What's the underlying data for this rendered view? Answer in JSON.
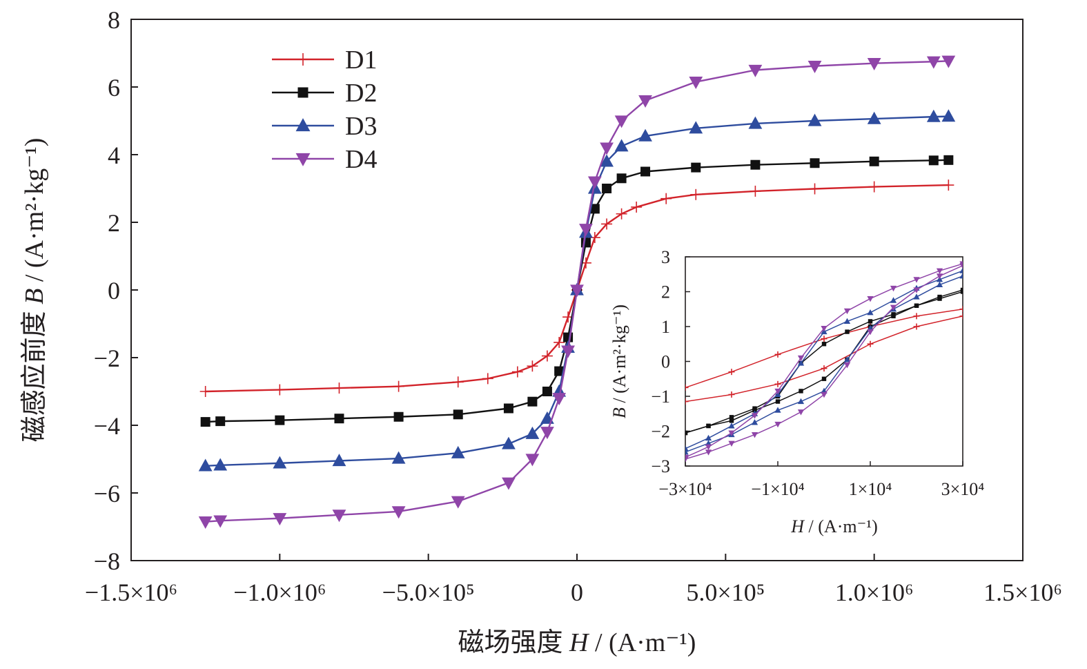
{
  "colors": {
    "D1": "#d2232a",
    "D2": "#111111",
    "D3": "#2e4c9e",
    "D4": "#8f45a8",
    "axis": "#231f20"
  },
  "chart_data": [
    {
      "type": "line",
      "role": "main",
      "xlabel_prefix": "磁场强度",
      "xlabel_var": "H",
      "xlabel_unit": "/ (A·m⁻¹)",
      "ylabel_prefix": "磁感应前度",
      "ylabel_var": "B",
      "ylabel_unit": "/ (A·m²·kg⁻¹)",
      "xlim": [
        -1500000,
        1500000
      ],
      "ylim": [
        -8,
        8
      ],
      "x_ticks": [
        -1500000,
        -1000000,
        -500000,
        0,
        500000,
        1000000,
        1500000
      ],
      "x_tick_labels": [
        "−1.5×10⁶",
        "−1.0×10⁶",
        "−5.0×10⁵",
        "0",
        "5.0×10⁵",
        "1.0×10⁶",
        "1.5×10⁶"
      ],
      "y_ticks": [
        -8,
        -6,
        -4,
        -2,
        0,
        2,
        4,
        6,
        8
      ],
      "y_tick_labels": [
        "−8",
        "−6",
        "−4",
        "−2",
        "0",
        "2",
        "4",
        "6",
        "8"
      ],
      "legend_position": "top-left",
      "series": [
        {
          "name": "D1",
          "marker": "plus",
          "x": [
            -1250000,
            -1000000,
            -800000,
            -600000,
            -400000,
            -300000,
            -200000,
            -150000,
            -100000,
            -60000,
            -30000,
            0,
            30000,
            60000,
            100000,
            150000,
            200000,
            300000,
            400000,
            600000,
            800000,
            1000000,
            1250000
          ],
          "y": [
            -3.0,
            -2.95,
            -2.9,
            -2.85,
            -2.72,
            -2.62,
            -2.42,
            -2.25,
            -1.95,
            -1.55,
            -0.8,
            0.0,
            0.8,
            1.55,
            1.95,
            2.25,
            2.45,
            2.7,
            2.82,
            2.92,
            2.99,
            3.05,
            3.1
          ]
        },
        {
          "name": "D2",
          "marker": "square",
          "x": [
            -1250000,
            -1200000,
            -1000000,
            -800000,
            -600000,
            -400000,
            -230000,
            -150000,
            -100000,
            -60000,
            -30000,
            0,
            30000,
            60000,
            100000,
            150000,
            230000,
            400000,
            600000,
            800000,
            1000000,
            1200000,
            1250000
          ],
          "y": [
            -3.9,
            -3.88,
            -3.85,
            -3.8,
            -3.75,
            -3.68,
            -3.5,
            -3.3,
            -3.0,
            -2.4,
            -1.4,
            0.0,
            1.4,
            2.4,
            3.0,
            3.3,
            3.5,
            3.62,
            3.7,
            3.75,
            3.8,
            3.83,
            3.84
          ]
        },
        {
          "name": "D3",
          "marker": "triangle-up",
          "x": [
            -1250000,
            -1200000,
            -1000000,
            -800000,
            -600000,
            -400000,
            -230000,
            -150000,
            -100000,
            -60000,
            -30000,
            0,
            30000,
            60000,
            100000,
            150000,
            230000,
            400000,
            600000,
            800000,
            1000000,
            1200000,
            1250000
          ],
          "y": [
            -5.2,
            -5.18,
            -5.12,
            -5.05,
            -4.98,
            -4.82,
            -4.55,
            -4.25,
            -3.8,
            -3.0,
            -1.7,
            0.0,
            1.7,
            3.0,
            3.8,
            4.25,
            4.55,
            4.78,
            4.92,
            5.0,
            5.06,
            5.12,
            5.13
          ]
        },
        {
          "name": "D4",
          "marker": "triangle-down",
          "x": [
            -1250000,
            -1200000,
            -1000000,
            -800000,
            -600000,
            -400000,
            -230000,
            -150000,
            -100000,
            -60000,
            -30000,
            0,
            30000,
            60000,
            100000,
            150000,
            230000,
            400000,
            600000,
            800000,
            1000000,
            1200000,
            1250000
          ],
          "y": [
            -6.85,
            -6.82,
            -6.75,
            -6.65,
            -6.55,
            -6.25,
            -5.7,
            -5.0,
            -4.2,
            -3.2,
            -1.8,
            0.0,
            1.8,
            3.2,
            4.2,
            5.0,
            5.6,
            6.15,
            6.5,
            6.62,
            6.7,
            6.75,
            6.77
          ]
        }
      ]
    },
    {
      "type": "line",
      "role": "inset",
      "xlabel_var": "H",
      "xlabel_unit": "/ (A·m⁻¹)",
      "ylabel_var": "B",
      "ylabel_unit": "/ (A·m²·kg⁻¹)",
      "xlim": [
        -30000,
        30000
      ],
      "ylim": [
        -3,
        3
      ],
      "x_ticks": [
        -30000,
        -10000,
        10000,
        30000
      ],
      "x_tick_labels": [
        "−3×10⁴",
        "−1×10⁴",
        "1×10⁴",
        "3×10⁴"
      ],
      "y_ticks": [
        -3,
        -2,
        -1,
        0,
        1,
        2,
        3
      ],
      "y_tick_labels": [
        "−3",
        "−2",
        "−1",
        "0",
        "1",
        "2",
        "3"
      ],
      "series": [
        {
          "name": "D1",
          "marker": "plus",
          "branches": [
            {
              "x": [
                -30000,
                -20000,
                -10000,
                0,
                10000,
                20000,
                30000
              ],
              "y": [
                -0.75,
                -0.3,
                0.2,
                0.65,
                1.0,
                1.3,
                1.5
              ]
            },
            {
              "x": [
                -30000,
                -20000,
                -10000,
                0,
                10000,
                20000,
                30000
              ],
              "y": [
                -1.15,
                -0.95,
                -0.65,
                -0.2,
                0.5,
                1.0,
                1.3
              ]
            }
          ]
        },
        {
          "name": "D2",
          "marker": "square",
          "branches": [
            {
              "x": [
                -30000,
                -25000,
                -20000,
                -15000,
                -10000,
                -5000,
                0,
                5000,
                10000,
                15000,
                20000,
                25000,
                30000
              ],
              "y": [
                -2.05,
                -1.85,
                -1.6,
                -1.35,
                -1.0,
                -0.05,
                0.5,
                0.85,
                1.15,
                1.35,
                1.6,
                1.85,
                2.05
              ]
            },
            {
              "x": [
                -30000,
                -25000,
                -20000,
                -15000,
                -10000,
                -5000,
                0,
                5000,
                10000,
                15000,
                20000,
                25000,
                30000
              ],
              "y": [
                -2.05,
                -1.85,
                -1.7,
                -1.4,
                -1.15,
                -0.85,
                -0.5,
                0.05,
                1.0,
                1.3,
                1.6,
                1.8,
                2.0
              ]
            }
          ]
        },
        {
          "name": "D3",
          "marker": "triangle-up",
          "branches": [
            {
              "x": [
                -30000,
                -25000,
                -20000,
                -15000,
                -10000,
                -5000,
                0,
                5000,
                10000,
                15000,
                20000,
                25000,
                30000
              ],
              "y": [
                -2.5,
                -2.2,
                -1.85,
                -1.5,
                -0.95,
                -0.05,
                0.85,
                1.15,
                1.4,
                1.75,
                2.1,
                2.35,
                2.6
              ]
            },
            {
              "x": [
                -30000,
                -25000,
                -20000,
                -15000,
                -10000,
                -5000,
                0,
                5000,
                10000,
                15000,
                20000,
                25000,
                30000
              ],
              "y": [
                -2.6,
                -2.35,
                -2.1,
                -1.75,
                -1.4,
                -1.15,
                -0.85,
                0.05,
                0.95,
                1.5,
                1.85,
                2.2,
                2.45
              ]
            }
          ]
        },
        {
          "name": "D4",
          "marker": "triangle-down",
          "branches": [
            {
              "x": [
                -30000,
                -25000,
                -20000,
                -15000,
                -10000,
                -5000,
                0,
                5000,
                10000,
                15000,
                20000,
                25000,
                30000
              ],
              "y": [
                -2.75,
                -2.45,
                -2.05,
                -1.55,
                -0.85,
                0.1,
                0.95,
                1.45,
                1.8,
                2.1,
                2.35,
                2.6,
                2.8
              ]
            },
            {
              "x": [
                -30000,
                -25000,
                -20000,
                -15000,
                -10000,
                -5000,
                0,
                5000,
                10000,
                15000,
                20000,
                25000,
                30000
              ],
              "y": [
                -2.8,
                -2.6,
                -2.35,
                -2.1,
                -1.8,
                -1.45,
                -0.95,
                -0.1,
                0.85,
                1.55,
                2.05,
                2.45,
                2.75
              ]
            }
          ]
        }
      ]
    }
  ]
}
